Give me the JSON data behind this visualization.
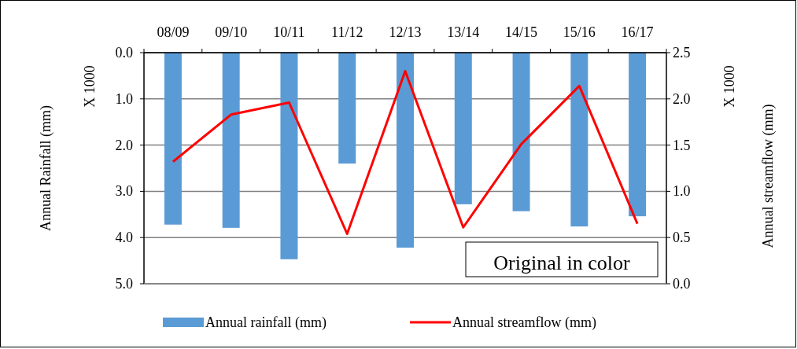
{
  "chart_data": {
    "type": "bar",
    "categories": [
      "08/09",
      "09/10",
      "10/11",
      "11/12",
      "12/13",
      "13/14",
      "14/15",
      "15/16",
      "16/17"
    ],
    "series": [
      {
        "name": "Annual rainfall (mm)",
        "color": "#5b9bd5",
        "values": [
          3.72,
          3.79,
          4.47,
          2.4,
          4.22,
          3.28,
          3.43,
          3.76,
          3.54
        ]
      },
      {
        "name": "Annual streamflow (mm)",
        "type": "line",
        "axis": "y2",
        "color": "#ff0000",
        "values": [
          1.32,
          1.83,
          1.96,
          0.54,
          2.3,
          0.61,
          1.51,
          2.14,
          0.65
        ]
      }
    ],
    "ylabel": "Annual Rainfall (mm)",
    "y2label": "Annual streamflow (mm)",
    "ylim": [
      5,
      0
    ],
    "yticks": [
      {
        "value": 0,
        "label": "0.0"
      },
      {
        "value": 1,
        "label": "1.0"
      },
      {
        "value": 2,
        "label": "2.0"
      },
      {
        "value": 3,
        "label": "3.0"
      },
      {
        "value": 4,
        "label": "4.0"
      },
      {
        "value": 5,
        "label": "5.0"
      }
    ],
    "y2lim": [
      0,
      2.5
    ],
    "y2ticks": [
      {
        "value": 0,
        "label": "0.0"
      },
      {
        "value": 0.5,
        "label": "0.5"
      },
      {
        "value": 1,
        "label": "1.0"
      },
      {
        "value": 1.5,
        "label": "1.5"
      },
      {
        "value": 2,
        "label": "2.0"
      },
      {
        "value": 2.5,
        "label": "2.5"
      }
    ],
    "annotations": [
      "X 1000",
      "X 1000",
      "Original in color"
    ],
    "grid": "y",
    "legend": "bottom",
    "line_style": "solid",
    "marker": "none"
  }
}
